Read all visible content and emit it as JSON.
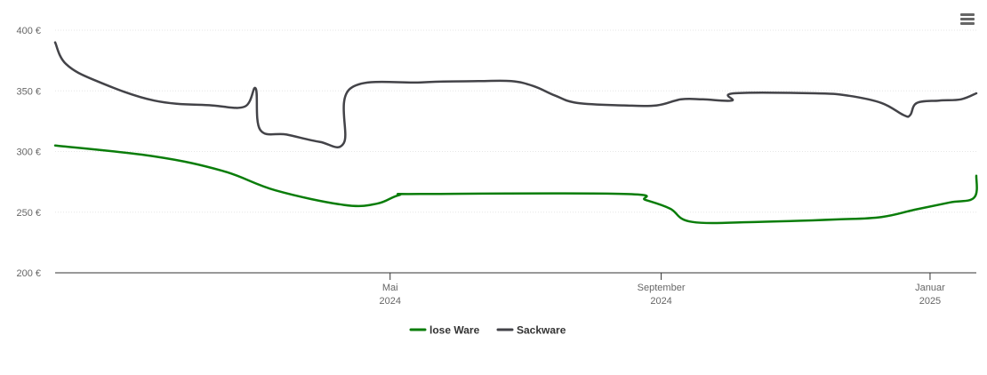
{
  "chart_data": {
    "type": "line",
    "y_unit": "€",
    "ylim": [
      200,
      400
    ],
    "yticks": [
      {
        "value": 200,
        "label": "200 €"
      },
      {
        "value": 250,
        "label": "250 €"
      },
      {
        "value": 300,
        "label": "300 €"
      },
      {
        "value": 350,
        "label": "350 €"
      },
      {
        "value": 400,
        "label": "400 €"
      }
    ],
    "xlim": [
      "2023-12-01",
      "2025-01-22"
    ],
    "xticks": [
      {
        "date": "2024-05-01",
        "line1": "Mai",
        "line2": "2024"
      },
      {
        "date": "2024-09-01",
        "line1": "September",
        "line2": "2024"
      },
      {
        "date": "2025-01-01",
        "line1": "Januar",
        "line2": "2025"
      }
    ],
    "grid": true,
    "legend_position": "bottom",
    "series": [
      {
        "name": "lose Ware",
        "color": "#0a7d0a",
        "points": [
          [
            "2023-12-01",
            305
          ],
          [
            "2024-01-15",
            296
          ],
          [
            "2024-02-15",
            284
          ],
          [
            "2024-03-10",
            268
          ],
          [
            "2024-04-10",
            256
          ],
          [
            "2024-04-25",
            257
          ],
          [
            "2024-05-05",
            264
          ],
          [
            "2024-05-15",
            265
          ],
          [
            "2024-08-15",
            265
          ],
          [
            "2024-08-25",
            260
          ],
          [
            "2024-09-05",
            253
          ],
          [
            "2024-09-15",
            242
          ],
          [
            "2024-10-15",
            242
          ],
          [
            "2024-11-20",
            244
          ],
          [
            "2024-12-10",
            246
          ],
          [
            "2024-12-25",
            252
          ],
          [
            "2025-01-10",
            258
          ],
          [
            "2025-01-21",
            262
          ],
          [
            "2025-01-22",
            280
          ]
        ]
      },
      {
        "name": "Sackware",
        "color": "#434348",
        "points": [
          [
            "2023-12-01",
            390
          ],
          [
            "2023-12-06",
            372
          ],
          [
            "2023-12-20",
            358
          ],
          [
            "2024-01-15",
            342
          ],
          [
            "2024-02-10",
            338
          ],
          [
            "2024-02-25",
            337
          ],
          [
            "2024-03-01",
            352
          ],
          [
            "2024-03-03",
            318
          ],
          [
            "2024-03-15",
            314
          ],
          [
            "2024-03-30",
            308
          ],
          [
            "2024-04-10",
            307
          ],
          [
            "2024-04-13",
            352
          ],
          [
            "2024-05-15",
            357
          ],
          [
            "2024-06-10",
            358
          ],
          [
            "2024-06-25",
            358
          ],
          [
            "2024-07-05",
            354
          ],
          [
            "2024-07-15",
            346
          ],
          [
            "2024-07-25",
            340
          ],
          [
            "2024-08-15",
            338
          ],
          [
            "2024-08-30",
            338
          ],
          [
            "2024-09-10",
            343
          ],
          [
            "2024-09-20",
            343
          ],
          [
            "2024-10-03",
            342
          ],
          [
            "2024-10-04",
            348
          ],
          [
            "2024-11-10",
            348
          ],
          [
            "2024-11-25",
            346
          ],
          [
            "2024-12-10",
            340
          ],
          [
            "2024-12-20",
            330
          ],
          [
            "2024-12-23",
            330
          ],
          [
            "2024-12-26",
            340
          ],
          [
            "2025-01-05",
            342
          ],
          [
            "2025-01-15",
            343
          ],
          [
            "2025-01-22",
            348
          ]
        ]
      }
    ]
  },
  "toolbar": {
    "menu_icon": "hamburger-menu-icon"
  }
}
